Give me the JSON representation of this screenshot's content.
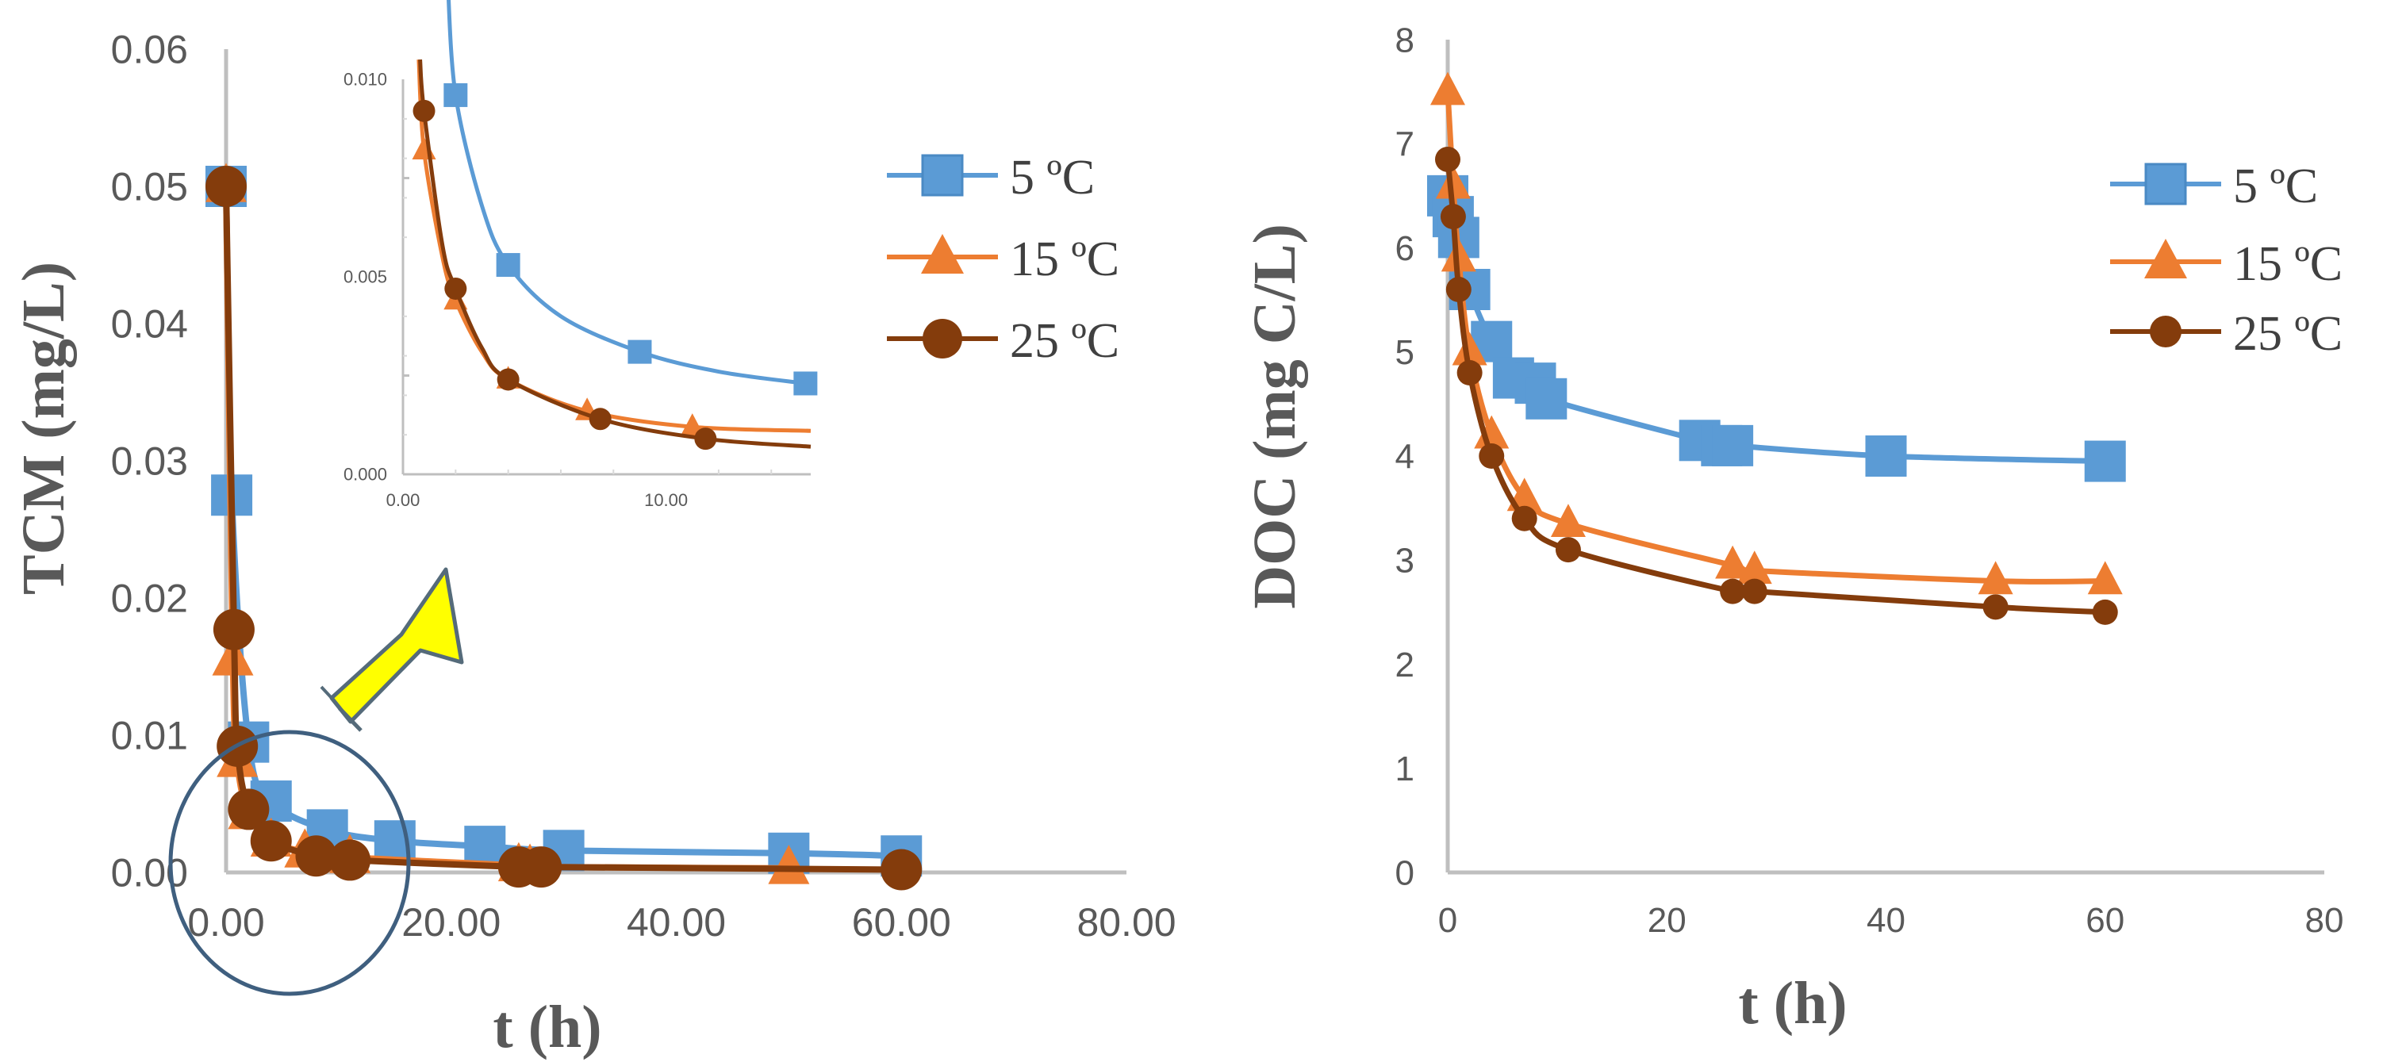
{
  "colors": {
    "s5": "#5b9bd5",
    "s15": "#ed7d31",
    "s25": "#843c0c",
    "axis": "#bfbfbf",
    "text": "#595959",
    "arrow": "#ffff00",
    "circle": "#3f5f7f"
  },
  "chart_data": [
    {
      "type": "line",
      "title": "",
      "xlabel": "t (h)",
      "ylabel": "TCM  (mg/L)",
      "xlim": [
        0,
        80
      ],
      "ylim": [
        0,
        0.06
      ],
      "xticks": [
        "0.00",
        "20.00",
        "40.00",
        "60.00",
        "80.00"
      ],
      "yticks": [
        "0.00",
        "0.01",
        "0.02",
        "0.03",
        "0.04",
        "0.05",
        "0.06"
      ],
      "legend": [
        "5 ºC",
        "15 ºC",
        "25 ºC"
      ],
      "series": [
        {
          "name": "5 ºC",
          "marker": "square",
          "x": [
            0,
            0.5,
            2,
            4,
            9,
            15,
            23,
            30,
            50,
            60
          ],
          "y": [
            0.05,
            0.0275,
            0.0095,
            0.0052,
            0.0031,
            0.0023,
            0.0019,
            0.0016,
            0.0014,
            0.0012
          ],
          "curve": [
            0.05,
            0.0275,
            0.0178,
            0.0095,
            0.0052,
            0.0031,
            0.0023,
            0.0018,
            0.0015,
            0.0013,
            0.0012
          ]
        },
        {
          "name": "15 ºC",
          "marker": "triangle",
          "x": [
            0,
            0.6,
            1,
            2,
            4,
            7,
            11,
            26,
            27,
            50
          ],
          "y": [
            0.05,
            0.0155,
            0.0081,
            0.0043,
            0.0023,
            0.0015,
            0.0011,
            0.0005,
            0.0004,
            0.0003
          ],
          "curve": [
            0.05,
            0.0178,
            0.0091,
            0.0045,
            0.0024,
            0.0014,
            0.0009,
            0.0006,
            0.0004,
            0.0003
          ]
        },
        {
          "name": "25 ºC",
          "marker": "circle",
          "x": [
            0,
            0.7,
            1,
            2,
            4,
            8,
            11,
            26,
            28,
            60
          ],
          "y": [
            0.05,
            0.0177,
            0.0092,
            0.0046,
            0.0023,
            0.0012,
            0.0009,
            0.0004,
            0.0004,
            0.0002
          ],
          "curve": [
            0.05,
            0.0177,
            0.0092,
            0.0046,
            0.0024,
            0.0013,
            0.0009,
            0.0005,
            0.0003,
            0.0002
          ]
        }
      ],
      "annotations": [
        "circle highlighting t ≈ 0–15 h region",
        "yellow arrow pointing to inset"
      ]
    },
    {
      "type": "line",
      "title": "inset",
      "xlim": [
        0,
        15.5
      ],
      "ylim": [
        0,
        0.01
      ],
      "xticks": [
        "0.00",
        "10.00"
      ],
      "yticks": [
        "0.000",
        "0.005",
        "0.010"
      ],
      "series": [
        {
          "name": "5 ºC",
          "marker": "square",
          "x": [
            2,
            4,
            9,
            15.3
          ],
          "y": [
            0.0096,
            0.0053,
            0.0031,
            0.0023
          ]
        },
        {
          "name": "15 ºC",
          "marker": "triangle",
          "x": [
            0.8,
            2,
            4,
            7,
            11
          ],
          "y": [
            0.0082,
            0.0044,
            0.0024,
            0.0016,
            0.0012
          ]
        },
        {
          "name": "25 ºC",
          "marker": "circle",
          "x": [
            0.8,
            2,
            4,
            7.5,
            11.5
          ],
          "y": [
            0.0092,
            0.0047,
            0.0024,
            0.0014,
            0.0009
          ]
        }
      ]
    },
    {
      "type": "line",
      "title": "",
      "xlabel": "t (h)",
      "ylabel": "DOC  (mg C/L)",
      "xlim": [
        0,
        80
      ],
      "ylim": [
        0,
        8
      ],
      "xticks": [
        "0",
        "20",
        "40",
        "60",
        "80"
      ],
      "yticks": [
        "0",
        "1",
        "2",
        "3",
        "4",
        "5",
        "6",
        "7",
        "8"
      ],
      "legend": [
        "5 ºC",
        "15 ºC",
        "25 ºC"
      ],
      "series": [
        {
          "name": "5 ºC",
          "marker": "square",
          "x": [
            0,
            0.5,
            1,
            2,
            4,
            6,
            8,
            9,
            23,
            25,
            26,
            40,
            60
          ],
          "y": [
            6.5,
            6.3,
            6.1,
            5.6,
            5.1,
            4.75,
            4.7,
            4.55,
            4.15,
            4.1,
            4.1,
            4.0,
            3.95
          ]
        },
        {
          "name": "15 ºC",
          "marker": "triangle",
          "x": [
            0,
            0.5,
            1,
            2,
            4,
            7,
            11,
            26,
            28,
            50,
            60
          ],
          "y": [
            7.5,
            6.6,
            5.9,
            5.0,
            4.2,
            3.6,
            3.35,
            2.95,
            2.9,
            2.8,
            2.8
          ]
        },
        {
          "name": "25 ºC",
          "marker": "circle",
          "x": [
            0,
            0.5,
            1,
            2,
            4,
            7,
            11,
            26,
            28,
            50,
            60
          ],
          "y": [
            6.85,
            6.3,
            5.6,
            4.8,
            4.0,
            3.4,
            3.1,
            2.7,
            2.7,
            2.55,
            2.5
          ]
        }
      ]
    }
  ]
}
